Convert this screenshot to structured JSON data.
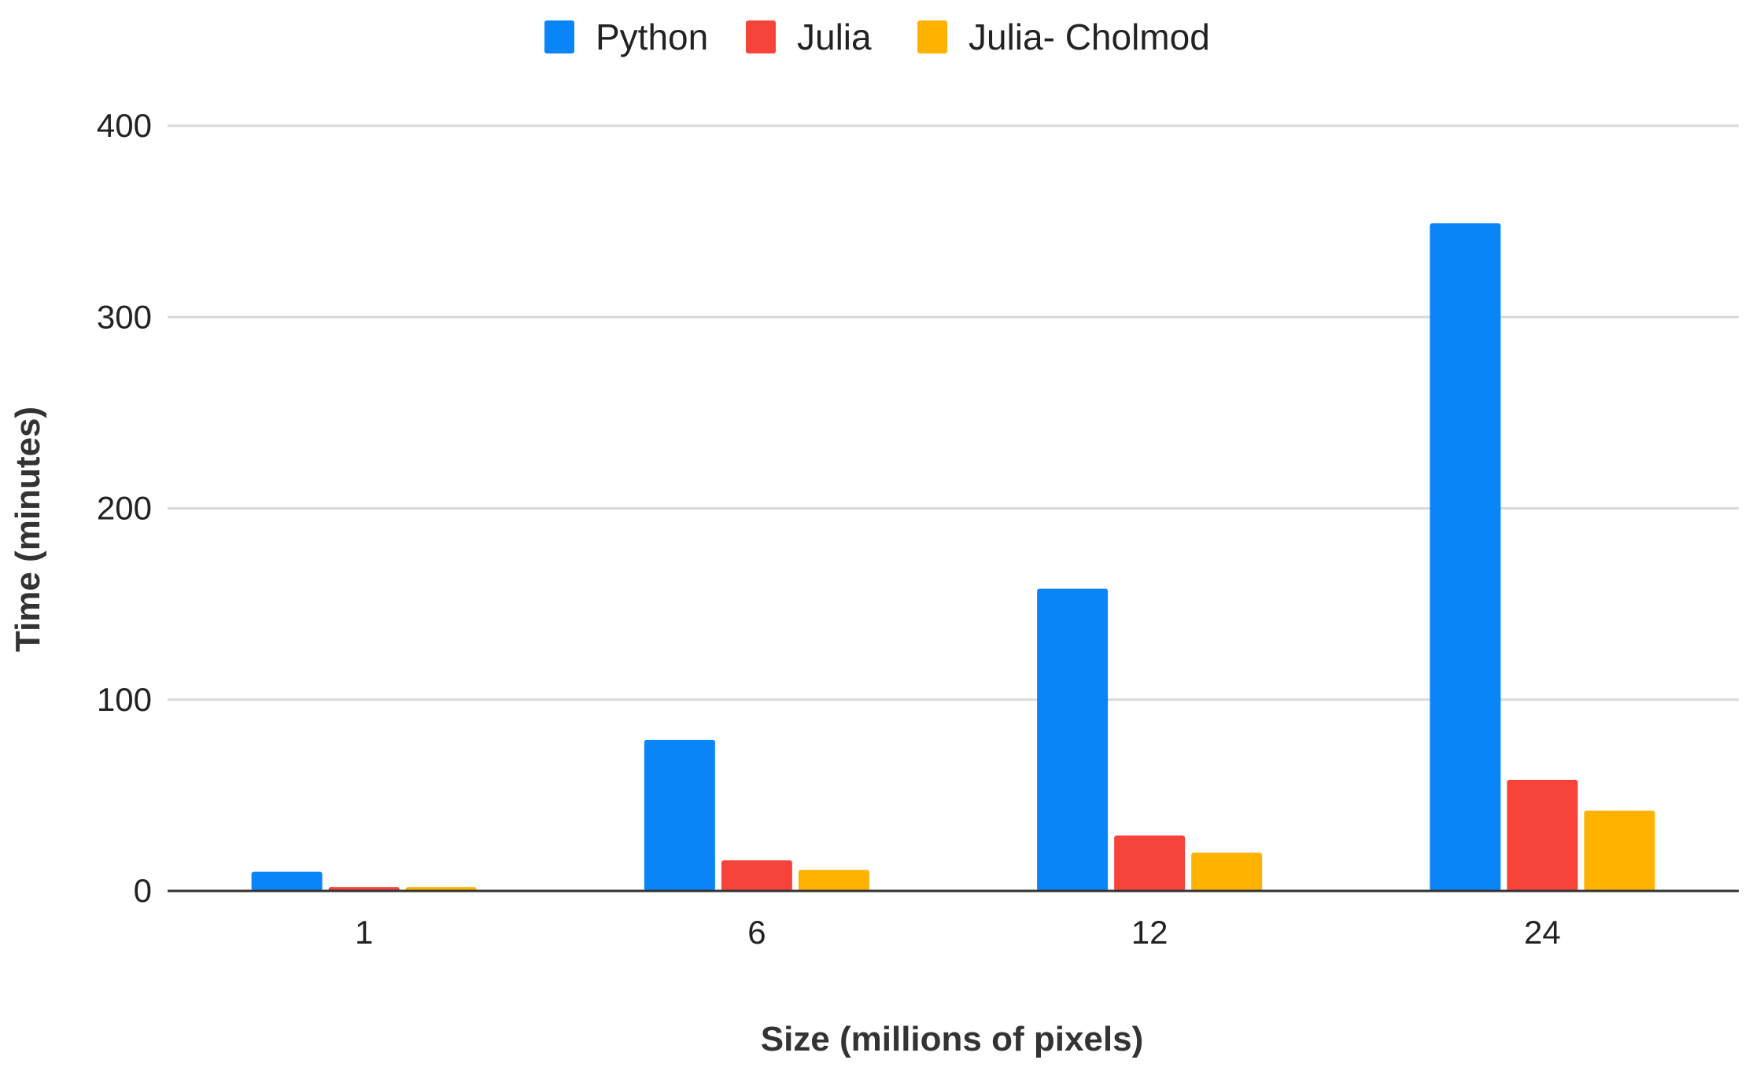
{
  "chart_data": {
    "type": "bar",
    "categories": [
      "1",
      "6",
      "12",
      "24"
    ],
    "series": [
      {
        "name": "Python",
        "color": "#0a85f7",
        "values": [
          10,
          79,
          158,
          349
        ]
      },
      {
        "name": "Julia",
        "color": "#f6443a",
        "values": [
          2,
          16,
          29,
          58
        ]
      },
      {
        "name": "Julia- Cholmod",
        "color": "#ffb300",
        "values": [
          2,
          11,
          20,
          42
        ]
      }
    ],
    "xlabel": "Size (millions of pixels)",
    "ylabel": "Time (minutes)",
    "ylim": [
      0,
      400
    ],
    "yticks": [
      0,
      100,
      200,
      300,
      400
    ],
    "grid": true,
    "legend": "top-center"
  }
}
